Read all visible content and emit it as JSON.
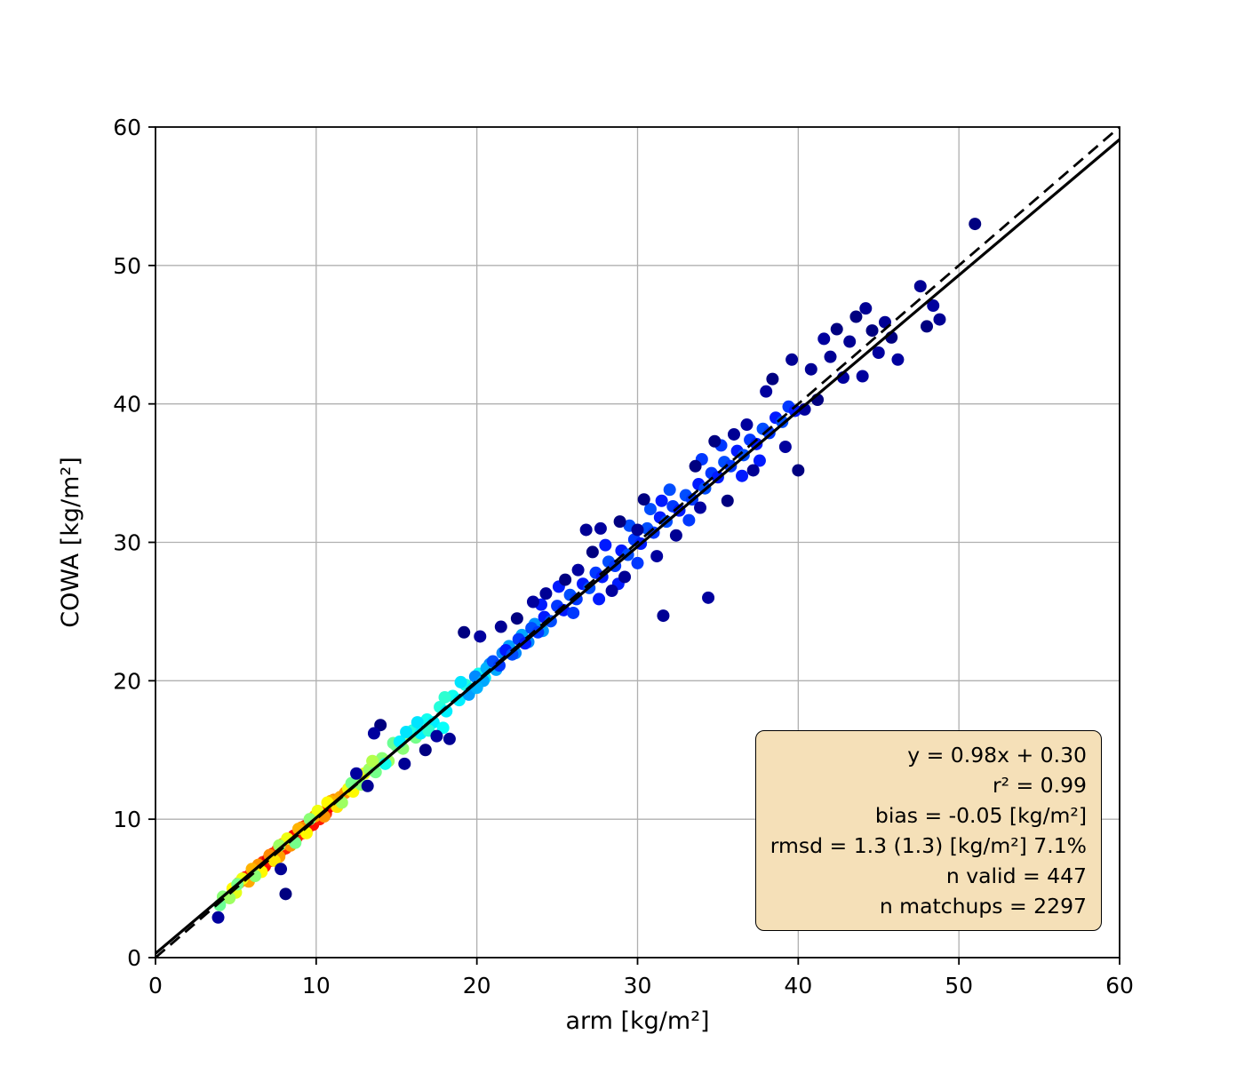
{
  "figure": {
    "background": "#ffffff"
  },
  "chart_data": {
    "type": "scatter",
    "title": "",
    "xlabel": "arm [kg/m²]",
    "ylabel": "COWA [kg/m²]",
    "xlim": [
      0,
      60
    ],
    "ylim": [
      0,
      60
    ],
    "xticks": [
      0,
      10,
      20,
      30,
      40,
      50,
      60
    ],
    "yticks": [
      0,
      10,
      20,
      30,
      40,
      50,
      60
    ],
    "grid": true,
    "grid_color": "#b0b0b0",
    "marker_radius": 7,
    "colormap": "jet",
    "fit_line": {
      "slope": 0.98,
      "intercept": 0.3,
      "color": "#000000",
      "style": "solid",
      "width": 3.2
    },
    "identity_line": {
      "slope": 1,
      "intercept": 0,
      "color": "#000000",
      "style": "dashed",
      "width": 2.8
    },
    "stats_box": {
      "bg": "#f5e0b8",
      "border": "#000000",
      "lines": [
        "y = 0.98x + 0.30",
        "r² = 0.99",
        "bias = -0.05 [kg/m²]",
        "rmsd = 1.3 (1.3) [kg/m²] 7.1%",
        "n valid = 447",
        "n matchups = 2297"
      ]
    },
    "stats": {
      "slope": 0.98,
      "intercept": 0.3,
      "r2": 0.99,
      "bias": -0.05,
      "rmsd": 1.3,
      "rmsd_unbiased": 1.3,
      "rmsd_pct": 7.1,
      "n_valid": 447,
      "n_matchups": 2297
    },
    "points": [
      [
        5.6,
        5.8,
        0.86
      ],
      [
        5.9,
        6.0,
        0.84
      ],
      [
        6.1,
        6.3,
        0.9
      ],
      [
        6.3,
        6.1,
        0.85
      ],
      [
        6.5,
        6.6,
        0.88
      ],
      [
        6.7,
        6.9,
        0.83
      ],
      [
        6.8,
        6.6,
        0.86
      ],
      [
        7.0,
        7.1,
        0.9
      ],
      [
        7.2,
        7.0,
        0.84
      ],
      [
        7.3,
        7.5,
        0.87
      ],
      [
        7.5,
        7.4,
        0.88
      ],
      [
        7.6,
        7.8,
        0.82
      ],
      [
        7.8,
        7.7,
        0.86
      ],
      [
        8.0,
        8.1,
        0.9
      ],
      [
        8.1,
        7.9,
        0.84
      ],
      [
        8.3,
        8.4,
        0.87
      ],
      [
        8.5,
        8.3,
        0.83
      ],
      [
        8.6,
        8.8,
        0.88
      ],
      [
        8.8,
        8.7,
        0.85
      ],
      [
        9.0,
        9.1,
        0.9
      ],
      [
        9.2,
        9.0,
        0.84
      ],
      [
        9.3,
        9.5,
        0.87
      ],
      [
        9.5,
        9.4,
        0.88
      ],
      [
        9.7,
        9.8,
        0.83
      ],
      [
        9.8,
        9.6,
        0.86
      ],
      [
        10.0,
        10.1,
        0.9
      ],
      [
        10.2,
        10.0,
        0.85
      ],
      [
        10.4,
        10.5,
        0.87
      ],
      [
        10.6,
        10.4,
        0.84
      ],
      [
        10.8,
        10.9,
        0.88
      ],
      [
        11.0,
        11.1,
        0.83
      ],
      [
        11.2,
        11.0,
        0.86
      ],
      [
        5.2,
        5.4,
        0.73
      ],
      [
        5.8,
        5.5,
        0.71
      ],
      [
        6.4,
        6.7,
        0.73
      ],
      [
        7.1,
        7.4,
        0.74
      ],
      [
        7.9,
        8.2,
        0.71
      ],
      [
        8.4,
        8.1,
        0.73
      ],
      [
        9.1,
        9.4,
        0.74
      ],
      [
        9.9,
        10.2,
        0.71
      ],
      [
        10.5,
        10.2,
        0.73
      ],
      [
        11.1,
        11.4,
        0.74
      ],
      [
        11.5,
        11.6,
        0.71
      ],
      [
        11.8,
        11.9,
        0.73
      ],
      [
        6.0,
        6.4,
        0.7
      ],
      [
        8.9,
        9.3,
        0.7
      ],
      [
        10.9,
        11.3,
        0.7
      ],
      [
        7.7,
        7.3,
        0.72
      ],
      [
        4.8,
        5.0,
        0.63
      ],
      [
        5.4,
        5.7,
        0.61
      ],
      [
        6.6,
        6.2,
        0.63
      ],
      [
        7.4,
        7.0,
        0.65
      ],
      [
        8.2,
        8.6,
        0.61
      ],
      [
        9.4,
        9.0,
        0.63
      ],
      [
        10.1,
        10.6,
        0.61
      ],
      [
        10.7,
        11.2,
        0.63
      ],
      [
        11.3,
        10.9,
        0.65
      ],
      [
        12.0,
        12.2,
        0.61
      ],
      [
        12.3,
        12.0,
        0.63
      ],
      [
        12.6,
        12.9,
        0.61
      ],
      [
        5.0,
        4.7,
        0.6
      ],
      [
        13.0,
        13.3,
        0.6
      ],
      [
        4.2,
        4.4,
        0.51
      ],
      [
        4.6,
        4.3,
        0.53
      ],
      [
        5.1,
        5.3,
        0.49
      ],
      [
        6.2,
        5.9,
        0.51
      ],
      [
        7.7,
        8.1,
        0.53
      ],
      [
        8.7,
        8.3,
        0.49
      ],
      [
        9.6,
        10.0,
        0.51
      ],
      [
        11.6,
        11.2,
        0.53
      ],
      [
        12.2,
        12.6,
        0.49
      ],
      [
        12.8,
        12.5,
        0.51
      ],
      [
        13.3,
        13.6,
        0.53
      ],
      [
        13.7,
        13.4,
        0.49
      ],
      [
        14.1,
        14.4,
        0.51
      ],
      [
        14.5,
        14.2,
        0.53
      ],
      [
        15.0,
        15.3,
        0.49
      ],
      [
        15.4,
        15.1,
        0.51
      ],
      [
        15.8,
        16.1,
        0.53
      ],
      [
        16.2,
        15.9,
        0.49
      ],
      [
        4.0,
        3.8,
        0.48
      ],
      [
        14.8,
        15.5,
        0.48
      ],
      [
        13.5,
        14.2,
        0.55
      ],
      [
        14.3,
        14.0,
        0.39
      ],
      [
        15.2,
        15.6,
        0.36
      ],
      [
        16.0,
        16.4,
        0.41
      ],
      [
        16.5,
        16.2,
        0.36
      ],
      [
        16.9,
        17.2,
        0.39
      ],
      [
        17.3,
        17.0,
        0.36
      ],
      [
        17.7,
        18.1,
        0.41
      ],
      [
        18.1,
        17.8,
        0.36
      ],
      [
        18.5,
        18.9,
        0.39
      ],
      [
        18.9,
        18.6,
        0.36
      ],
      [
        19.3,
        19.7,
        0.41
      ],
      [
        19.7,
        19.4,
        0.36
      ],
      [
        20.1,
        20.5,
        0.39
      ],
      [
        20.5,
        20.2,
        0.36
      ],
      [
        20.9,
        21.3,
        0.41
      ],
      [
        16.3,
        17.0,
        0.35
      ],
      [
        19.0,
        19.9,
        0.35
      ],
      [
        17.0,
        16.4,
        0.42
      ],
      [
        15.6,
        16.3,
        0.35
      ],
      [
        18.0,
        18.8,
        0.42
      ],
      [
        17.9,
        16.6,
        0.38
      ],
      [
        19.5,
        19.0,
        0.28
      ],
      [
        19.9,
        20.3,
        0.26
      ],
      [
        20.4,
        20.0,
        0.29
      ],
      [
        20.8,
        21.2,
        0.26
      ],
      [
        21.2,
        20.8,
        0.29
      ],
      [
        21.6,
        22.0,
        0.26
      ],
      [
        22.0,
        22.5,
        0.28
      ],
      [
        22.4,
        22.0,
        0.26
      ],
      [
        22.8,
        23.3,
        0.29
      ],
      [
        23.2,
        22.8,
        0.26
      ],
      [
        20.0,
        19.5,
        0.3
      ],
      [
        20.6,
        20.9,
        0.3
      ],
      [
        23.6,
        24.1,
        0.27
      ],
      [
        24.1,
        23.6,
        0.27
      ],
      [
        21.0,
        21.4,
        0.2
      ],
      [
        21.4,
        21.1,
        0.18
      ],
      [
        21.8,
        22.2,
        0.15
      ],
      [
        22.2,
        21.9,
        0.2
      ],
      [
        22.6,
        23.0,
        0.18
      ],
      [
        23.0,
        22.7,
        0.15
      ],
      [
        23.4,
        23.8,
        0.2
      ],
      [
        23.8,
        23.5,
        0.18
      ],
      [
        24.2,
        24.6,
        0.15
      ],
      [
        24.6,
        24.3,
        0.2
      ],
      [
        25.0,
        25.4,
        0.18
      ],
      [
        25.4,
        25.1,
        0.15
      ],
      [
        25.8,
        26.2,
        0.2
      ],
      [
        26.2,
        25.9,
        0.18
      ],
      [
        26.6,
        27.0,
        0.15
      ],
      [
        27.0,
        26.7,
        0.2
      ],
      [
        27.4,
        27.8,
        0.18
      ],
      [
        27.8,
        27.5,
        0.15
      ],
      [
        28.2,
        28.6,
        0.2
      ],
      [
        28.6,
        28.3,
        0.18
      ],
      [
        29.0,
        29.4,
        0.15
      ],
      [
        29.4,
        29.1,
        0.2
      ],
      [
        29.8,
        30.2,
        0.18
      ],
      [
        30.2,
        29.9,
        0.15
      ],
      [
        30.6,
        31.0,
        0.2
      ],
      [
        31.0,
        30.7,
        0.18
      ],
      [
        31.4,
        31.8,
        0.15
      ],
      [
        31.8,
        31.5,
        0.2
      ],
      [
        32.2,
        32.6,
        0.18
      ],
      [
        32.6,
        32.3,
        0.15
      ],
      [
        33.0,
        33.4,
        0.2
      ],
      [
        33.4,
        33.1,
        0.18
      ],
      [
        33.8,
        34.2,
        0.15
      ],
      [
        34.2,
        33.9,
        0.2
      ],
      [
        34.6,
        35.0,
        0.18
      ],
      [
        35.0,
        34.7,
        0.15
      ],
      [
        35.4,
        35.8,
        0.2
      ],
      [
        35.8,
        35.5,
        0.18
      ],
      [
        36.2,
        36.6,
        0.15
      ],
      [
        36.6,
        36.3,
        0.2
      ],
      [
        37.0,
        37.4,
        0.18
      ],
      [
        37.4,
        37.1,
        0.15
      ],
      [
        37.8,
        38.2,
        0.2
      ],
      [
        38.2,
        37.9,
        0.18
      ],
      [
        38.6,
        39.0,
        0.15
      ],
      [
        39.0,
        38.7,
        0.2
      ],
      [
        39.4,
        39.8,
        0.18
      ],
      [
        39.8,
        39.5,
        0.15
      ],
      [
        25.1,
        26.8,
        0.15
      ],
      [
        26.0,
        24.9,
        0.18
      ],
      [
        28.0,
        29.8,
        0.15
      ],
      [
        30.0,
        28.5,
        0.18
      ],
      [
        31.5,
        33.0,
        0.15
      ],
      [
        33.2,
        31.6,
        0.18
      ],
      [
        29.5,
        31.2,
        0.2
      ],
      [
        27.6,
        25.9,
        0.15
      ],
      [
        34.0,
        36.0,
        0.18
      ],
      [
        36.5,
        34.8,
        0.15
      ],
      [
        32.0,
        33.8,
        0.2
      ],
      [
        24.0,
        25.5,
        0.15
      ],
      [
        35.2,
        37.0,
        0.18
      ],
      [
        37.6,
        35.9,
        0.15
      ],
      [
        30.8,
        32.4,
        0.2
      ],
      [
        28.8,
        27.0,
        0.15
      ],
      [
        3.9,
        2.9,
        0.03
      ],
      [
        7.8,
        6.4,
        0.02
      ],
      [
        8.1,
        4.6,
        0.0
      ],
      [
        12.5,
        13.3,
        0.03
      ],
      [
        13.2,
        12.4,
        0.02
      ],
      [
        14.0,
        16.8,
        0.0
      ],
      [
        13.6,
        16.2,
        0.03
      ],
      [
        15.5,
        14.0,
        0.02
      ],
      [
        16.8,
        15.0,
        0.0
      ],
      [
        17.5,
        16.0,
        0.03
      ],
      [
        18.3,
        15.8,
        0.02
      ],
      [
        19.2,
        23.5,
        0.0
      ],
      [
        20.2,
        23.2,
        0.03
      ],
      [
        21.5,
        23.9,
        0.02
      ],
      [
        22.5,
        24.5,
        0.0
      ],
      [
        23.5,
        25.7,
        0.03
      ],
      [
        24.3,
        26.3,
        0.02
      ],
      [
        25.5,
        27.3,
        0.0
      ],
      [
        26.3,
        28.0,
        0.03
      ],
      [
        26.8,
        30.9,
        0.02
      ],
      [
        27.2,
        29.3,
        0.0
      ],
      [
        28.4,
        26.5,
        0.03
      ],
      [
        29.2,
        27.5,
        0.02
      ],
      [
        30.4,
        33.1,
        0.0
      ],
      [
        31.2,
        29.0,
        0.03
      ],
      [
        32.4,
        30.5,
        0.02
      ],
      [
        33.6,
        35.5,
        0.0
      ],
      [
        34.4,
        26.0,
        0.03
      ],
      [
        31.6,
        24.7,
        0.02
      ],
      [
        35.6,
        33.0,
        0.0
      ],
      [
        36.8,
        38.5,
        0.03
      ],
      [
        37.2,
        35.2,
        0.02
      ],
      [
        38.4,
        41.8,
        0.0
      ],
      [
        39.2,
        36.9,
        0.03
      ],
      [
        39.6,
        43.2,
        0.02
      ],
      [
        40.0,
        35.2,
        0.0
      ],
      [
        40.4,
        39.6,
        0.03
      ],
      [
        40.8,
        42.5,
        0.02
      ],
      [
        41.2,
        40.3,
        0.0
      ],
      [
        41.6,
        44.7,
        0.03
      ],
      [
        42.0,
        43.4,
        0.02
      ],
      [
        42.4,
        45.4,
        0.0
      ],
      [
        42.8,
        41.9,
        0.03
      ],
      [
        43.2,
        44.5,
        0.02
      ],
      [
        43.6,
        46.3,
        0.0
      ],
      [
        44.0,
        42.0,
        0.03
      ],
      [
        44.2,
        46.9,
        0.02
      ],
      [
        44.6,
        45.3,
        0.0
      ],
      [
        45.0,
        43.7,
        0.03
      ],
      [
        45.4,
        45.9,
        0.02
      ],
      [
        45.8,
        44.8,
        0.0
      ],
      [
        46.2,
        43.2,
        0.03
      ],
      [
        47.6,
        48.5,
        0.02
      ],
      [
        48.0,
        45.6,
        0.0
      ],
      [
        48.4,
        47.1,
        0.03
      ],
      [
        48.8,
        46.1,
        0.02
      ],
      [
        51.0,
        53.0,
        0.0
      ],
      [
        38.0,
        40.9,
        0.03
      ],
      [
        36.0,
        37.8,
        0.02
      ],
      [
        34.8,
        37.3,
        0.0
      ],
      [
        33.9,
        32.5,
        0.03
      ],
      [
        30.0,
        30.9,
        0.02
      ],
      [
        28.9,
        31.5,
        0.0
      ],
      [
        27.7,
        31.0,
        0.03
      ]
    ]
  }
}
